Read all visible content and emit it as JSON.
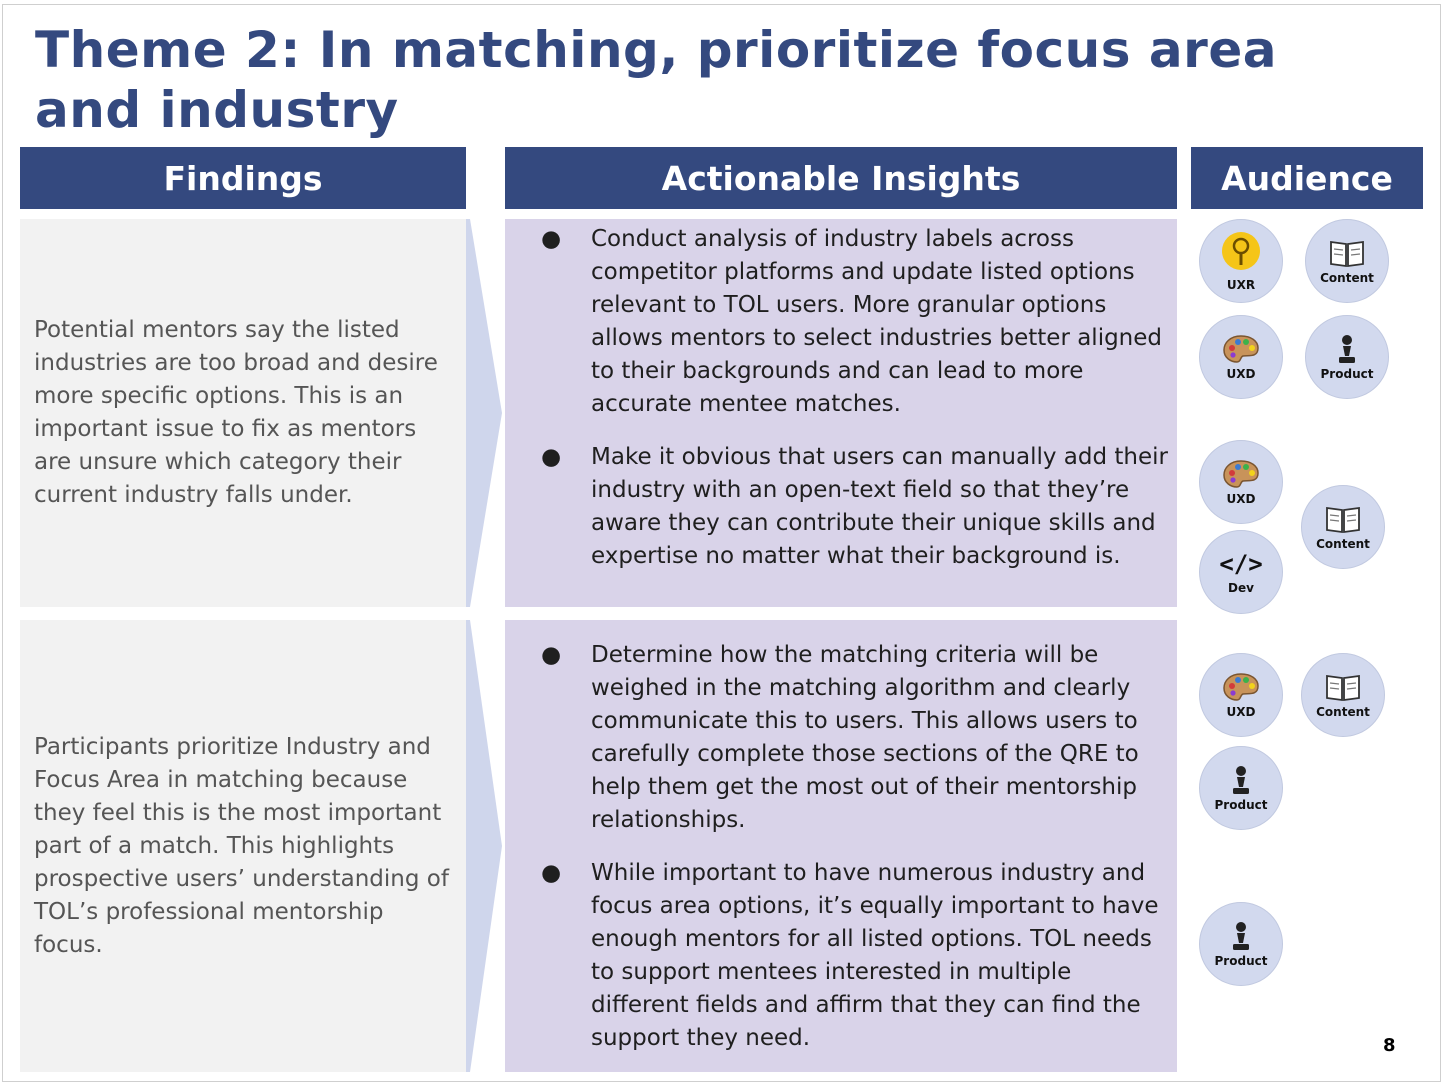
{
  "title": "Theme 2: In matching, prioritize focus area and industry",
  "headers": {
    "findings": "Findings",
    "insights": "Actionable Insights",
    "audience": "Audience"
  },
  "rows": [
    {
      "finding": "Potential mentors say the listed industries are too broad and desire more specific options. This is an important issue to fix as mentors are unsure which category their current industry falls under.",
      "insights": [
        "Conduct analysis of industry labels across competitor platforms and update listed options relevant to TOL users. More granular options allows mentors to select industries better aligned to their backgrounds and can lead to more accurate mentee matches.",
        "Make it obvious that users can manually add their industry with an open-text field so that they’re aware they can contribute their unique skills and expertise no matter what their background is."
      ]
    },
    {
      "finding": "Participants prioritize Industry and Focus Area in matching because they feel this is the most important part of a match. This highlights prospective users’ understanding of TOL’s professional mentorship focus.",
      "insights": [
        "Determine how the matching criteria will be weighed in the matching algorithm and clearly communicate this to users. This allows users to carefully complete those sections of the QRE to help them get the most out of their mentorship relationships.",
        "While important to have numerous industry and focus area options, it’s equally important to have enough mentors for all listed options. TOL needs to support mentees interested in multiple different fields and affirm that they can find the support they need."
      ]
    }
  ],
  "bullet_symbol": "●",
  "audience_badges": [
    {
      "label": "UXR",
      "icon": "magnifier-icon"
    },
    {
      "label": "Content",
      "icon": "book-icon"
    },
    {
      "label": "UXD",
      "icon": "palette-icon"
    },
    {
      "label": "Product",
      "icon": "chess-pawn-icon"
    },
    {
      "label": "UXD",
      "icon": "palette-icon"
    },
    {
      "label": "Content",
      "icon": "book-icon"
    },
    {
      "label": "Dev",
      "icon": "code-icon",
      "glyph": "</>"
    },
    {
      "label": "UXD",
      "icon": "palette-icon"
    },
    {
      "label": "Content",
      "icon": "book-icon"
    },
    {
      "label": "Product",
      "icon": "chess-pawn-icon"
    },
    {
      "label": "Product",
      "icon": "chess-pawn-icon"
    }
  ],
  "page_number": "8",
  "colors": {
    "header_bg": "#34497f",
    "insight_bg": "#d9d3e9",
    "finding_bg": "#f2f2f2",
    "badge_bg": "#d2d9ee"
  }
}
